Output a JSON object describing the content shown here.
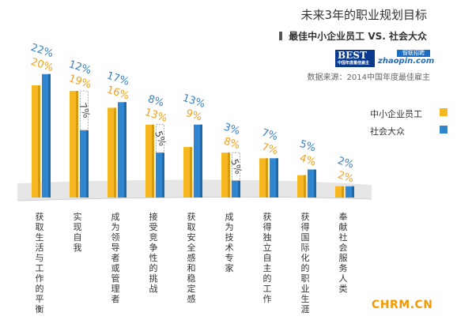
{
  "title": "未来3年的职业规划目标",
  "subtitle": "最佳中小企业员工 VS. 社会大众",
  "source": "数据来源：2014中国年度最佳雇主",
  "logo": {
    "best": "BEST",
    "best_sub": "中国年度最佳雇主",
    "zhaopin_cn": "智联招聘",
    "zhaopin_en": "zhaopin.com"
  },
  "watermark": "CHRM.CN",
  "colors": {
    "series1": "#f5b820",
    "series1_dark": "#d99a10",
    "series2": "#2f86cf",
    "series2_dark": "#1f68a8",
    "label1": "#f0a020",
    "label2": "#3a7fc0"
  },
  "chart_data": {
    "type": "bar",
    "categories": [
      "获取生活与工作的平衡",
      "实现自我",
      "成为领导者或管理者",
      "接受竞争性的挑战",
      "获取安全感和稳定感",
      "成为技术专家",
      "获得独立自主的工作",
      "获得国际化的职业生涯",
      "奉献社会服务人类"
    ],
    "series": [
      {
        "name": "中小企业员工",
        "values": [
          20,
          19,
          16,
          13,
          9,
          8,
          7,
          4,
          2
        ],
        "labels": [
          "20%",
          "19%",
          "16%",
          "13%",
          "9%",
          "8%",
          "7%",
          "4%",
          "2%"
        ]
      },
      {
        "name": "社会大众",
        "values": [
          22,
          12,
          17,
          8,
          13,
          3,
          7,
          5,
          2
        ],
        "labels": [
          "22%",
          "12%",
          "17%",
          "8%",
          "13%",
          "3%",
          "7%",
          "5%",
          "2%"
        ]
      }
    ],
    "inside_labels": [
      {
        "index": 1,
        "label": "7%",
        "value": 7
      },
      {
        "index": 3,
        "label": "5%",
        "value": 5
      },
      {
        "index": 5,
        "label": "5%",
        "value": 5
      }
    ],
    "legend_position": "right",
    "grid": false
  }
}
